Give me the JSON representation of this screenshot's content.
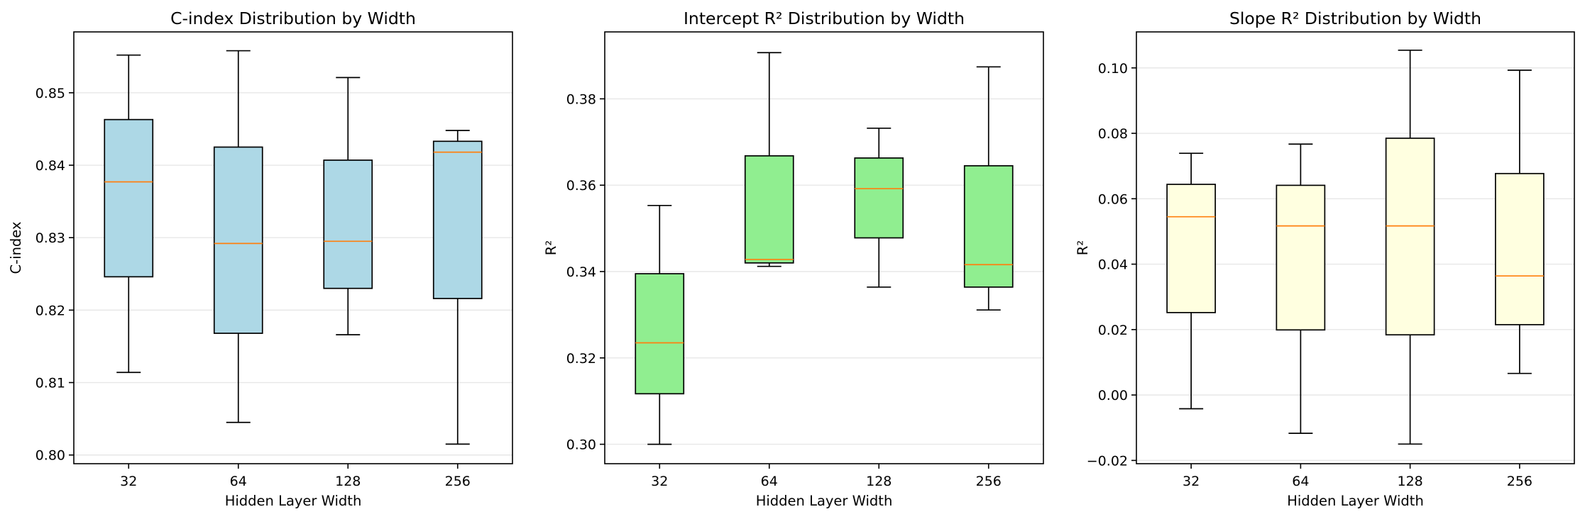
{
  "chart_data": [
    {
      "type": "box",
      "title": "C-index Distribution by Width",
      "xlabel": "Hidden Layer Width",
      "ylabel": "C-index",
      "categories": [
        "32",
        "64",
        "128",
        "256"
      ],
      "ylim": [
        0.7988,
        0.8584
      ],
      "yticks": [
        0.8,
        0.81,
        0.82,
        0.83,
        0.84,
        0.85
      ],
      "ytick_labels": [
        "0.80",
        "0.81",
        "0.82",
        "0.83",
        "0.84",
        "0.85"
      ],
      "grid": "y",
      "box_color": "#add8e6",
      "boxes": [
        {
          "whislo": 0.8114,
          "q1": 0.8246,
          "med": 0.8377,
          "q3": 0.8463,
          "whishi": 0.8552
        },
        {
          "whislo": 0.8045,
          "q1": 0.8168,
          "med": 0.8292,
          "q3": 0.8425,
          "whishi": 0.8558
        },
        {
          "whislo": 0.8166,
          "q1": 0.823,
          "med": 0.8295,
          "q3": 0.8407,
          "whishi": 0.8521
        },
        {
          "whislo": 0.8015,
          "q1": 0.8216,
          "med": 0.8418,
          "q3": 0.8433,
          "whishi": 0.8448
        }
      ]
    },
    {
      "type": "box",
      "title": "Intercept R² Distribution by Width",
      "xlabel": "Hidden Layer Width",
      "ylabel": "R²",
      "categories": [
        "32",
        "64",
        "128",
        "256"
      ],
      "ylim": [
        0.2955,
        0.3955
      ],
      "yticks": [
        0.3,
        0.32,
        0.34,
        0.36,
        0.38
      ],
      "ytick_labels": [
        "0.30",
        "0.32",
        "0.34",
        "0.36",
        "0.38"
      ],
      "grid": "y",
      "box_color": "#90ee90",
      "boxes": [
        {
          "whislo": 0.3,
          "q1": 0.3117,
          "med": 0.3235,
          "q3": 0.3395,
          "whishi": 0.3553
        },
        {
          "whislo": 0.3412,
          "q1": 0.342,
          "med": 0.3428,
          "q3": 0.3668,
          "whishi": 0.3907
        },
        {
          "whislo": 0.3364,
          "q1": 0.3478,
          "med": 0.3592,
          "q3": 0.3663,
          "whishi": 0.3732
        },
        {
          "whislo": 0.3311,
          "q1": 0.3364,
          "med": 0.3416,
          "q3": 0.3645,
          "whishi": 0.3874
        }
      ]
    },
    {
      "type": "box",
      "title": "Slope R² Distribution by Width",
      "xlabel": "Hidden Layer Width",
      "ylabel": "R²",
      "categories": [
        "32",
        "64",
        "128",
        "256"
      ],
      "ylim": [
        -0.021,
        0.111
      ],
      "yticks": [
        -0.02,
        0.0,
        0.02,
        0.04,
        0.06,
        0.08,
        0.1
      ],
      "ytick_labels": [
        "−0.02",
        "0.00",
        "0.02",
        "0.04",
        "0.06",
        "0.08",
        "0.10"
      ],
      "grid": "y",
      "box_color": "#ffffe0",
      "boxes": [
        {
          "whislo": -0.0042,
          "q1": 0.0252,
          "med": 0.0545,
          "q3": 0.0644,
          "whishi": 0.0739
        },
        {
          "whislo": -0.0117,
          "q1": 0.0199,
          "med": 0.0517,
          "q3": 0.0641,
          "whishi": 0.0767
        },
        {
          "whislo": -0.015,
          "q1": 0.0184,
          "med": 0.0517,
          "q3": 0.0785,
          "whishi": 0.1054
        },
        {
          "whislo": 0.0066,
          "q1": 0.0215,
          "med": 0.0364,
          "q3": 0.0677,
          "whishi": 0.0993
        }
      ]
    }
  ]
}
